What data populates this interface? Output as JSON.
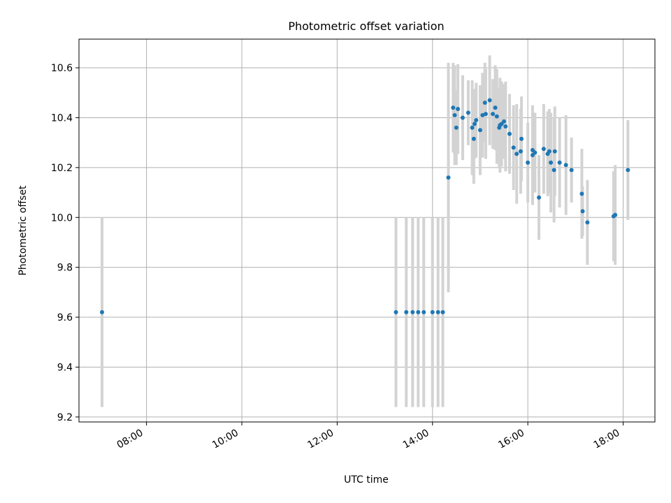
{
  "chart_data": {
    "type": "scatter",
    "title": "Photometric offset variation",
    "xlabel": "UTC time",
    "ylabel": "Photometric offset",
    "xlim": [
      "06:35",
      "18:40"
    ],
    "ylim": [
      9.18,
      10.715
    ],
    "grid": true,
    "x_ticks": [
      "08:00",
      "10:00",
      "12:00",
      "14:00",
      "16:00",
      "18:00"
    ],
    "y_ticks": [
      "9.2",
      "9.4",
      "9.6",
      "9.8",
      "10.0",
      "10.2",
      "10.4",
      "10.6"
    ],
    "colors": {
      "point": "#1f77b4",
      "errorbar": "#d3d3d3",
      "grid": "#b0b0b0"
    },
    "series": [
      {
        "x": [
          "07:04",
          "13:14",
          "13:27",
          "13:35",
          "13:42",
          "13:49",
          "14:00",
          "14:07",
          "14:13",
          "14:20",
          "14:26",
          "14:28",
          "14:30",
          "14:32",
          "14:38",
          "14:45",
          "14:50",
          "14:52",
          "14:53",
          "14:55",
          "15:00",
          "15:03",
          "15:06",
          "15:07",
          "15:12",
          "15:16",
          "15:19",
          "15:21",
          "15:24",
          "15:25",
          "15:27",
          "15:30",
          "15:32",
          "15:37",
          "15:42",
          "15:46",
          "15:51",
          "15:52",
          "16:00",
          "16:06",
          "16:06",
          "16:09",
          "16:14",
          "16:20",
          "16:25",
          "16:27",
          "16:29",
          "16:33",
          "16:34",
          "16:40",
          "16:48",
          "16:55",
          "17:08",
          "17:09",
          "17:15",
          "17:48",
          "17:50",
          "18:06"
        ],
        "y": [
          9.62,
          9.62,
          9.62,
          9.62,
          9.62,
          9.62,
          9.62,
          9.62,
          9.62,
          10.16,
          10.44,
          10.41,
          10.36,
          10.435,
          10.4,
          10.42,
          10.36,
          10.315,
          10.375,
          10.39,
          10.35,
          10.41,
          10.46,
          10.415,
          10.47,
          10.415,
          10.44,
          10.405,
          10.36,
          10.37,
          10.375,
          10.385,
          10.365,
          10.335,
          10.28,
          10.255,
          10.265,
          10.315,
          10.22,
          10.25,
          10.27,
          10.26,
          10.08,
          10.275,
          10.255,
          10.265,
          10.22,
          10.19,
          10.265,
          10.22,
          10.21,
          10.19,
          10.095,
          10.025,
          9.98,
          10.005,
          10.01,
          10.19
        ],
        "err": [
          0.38,
          0.38,
          0.38,
          0.38,
          0.38,
          0.38,
          0.38,
          0.38,
          0.38,
          0.46,
          0.18,
          0.2,
          0.15,
          0.18,
          0.17,
          0.13,
          0.19,
          0.18,
          0.14,
          0.15,
          0.18,
          0.17,
          0.16,
          0.18,
          0.18,
          0.14,
          0.17,
          0.19,
          0.16,
          0.19,
          0.17,
          0.15,
          0.18,
          0.16,
          0.17,
          0.2,
          0.17,
          0.17,
          0.16,
          0.2,
          0.17,
          0.16,
          0.17,
          0.18,
          0.17,
          0.17,
          0.2,
          0.21,
          0.18,
          0.18,
          0.2,
          0.13,
          0.18,
          0.1,
          0.17,
          0.18,
          0.2,
          0.2
        ]
      }
    ]
  }
}
